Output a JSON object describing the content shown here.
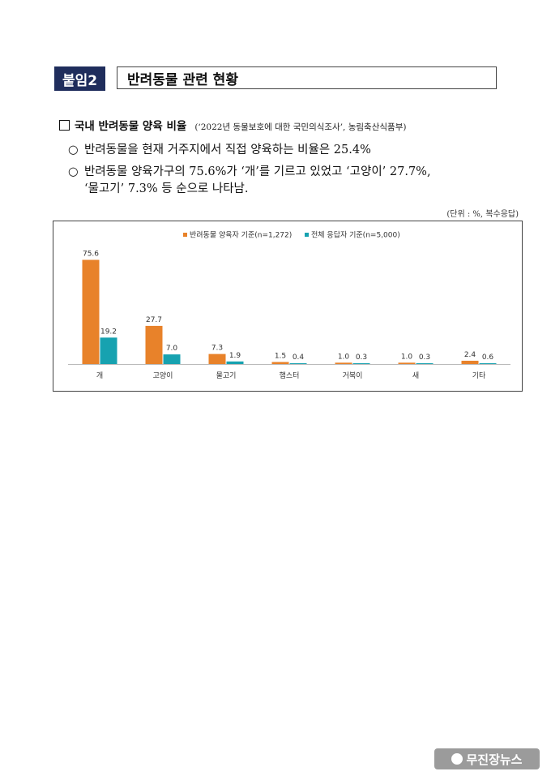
{
  "header": {
    "badge": "붙임2",
    "title": "반려동물 관련 현황"
  },
  "section": {
    "heading": "국내 반려동물 양육 비율",
    "source": "(‘2022년 동물보호에 대한 국민의식조사’, 농림축산식품부)"
  },
  "bullets": [
    {
      "marker": "○",
      "text": "반려동물을 현재 거주지에서 직접 양육하는 비율은 25.4%"
    },
    {
      "marker": "○",
      "text": "반려동물 양육가구의 75.6%가 ‘개’를 기르고 있었고 ‘고양이’ 27.7%,",
      "continuation": "‘물고기’ 7.3% 등 순으로 나타남."
    }
  ],
  "unit_note": "(단위 : %, 복수응답)",
  "colors": {
    "series1": "#e8822a",
    "series2": "#17a2b0",
    "badge": "#1f2d5c"
  },
  "chart_data": {
    "type": "bar",
    "categories": [
      "개",
      "고양이",
      "물고기",
      "햄스터",
      "거북이",
      "새",
      "기타"
    ],
    "series": [
      {
        "name": "반려동물 양육자 기준(n=1,272)",
        "values": [
          75.6,
          27.7,
          7.3,
          1.5,
          1.0,
          1.0,
          2.4
        ],
        "value_labels": [
          "75.6",
          "27.7",
          "7.3",
          "1.5",
          "1.0",
          "1.0",
          "2.4"
        ]
      },
      {
        "name": "전체 응답자 기준(n=5,000)",
        "values": [
          19.2,
          7.0,
          1.9,
          0.4,
          0.3,
          0.3,
          0.6
        ],
        "value_labels": [
          "19.2",
          "7.0",
          "1.9",
          "0.4",
          "0.3",
          "0.3",
          "0.6"
        ]
      }
    ],
    "ylim": [
      0,
      80
    ],
    "legend": "top-center",
    "grid": false
  },
  "watermark": "무진장뉴스"
}
